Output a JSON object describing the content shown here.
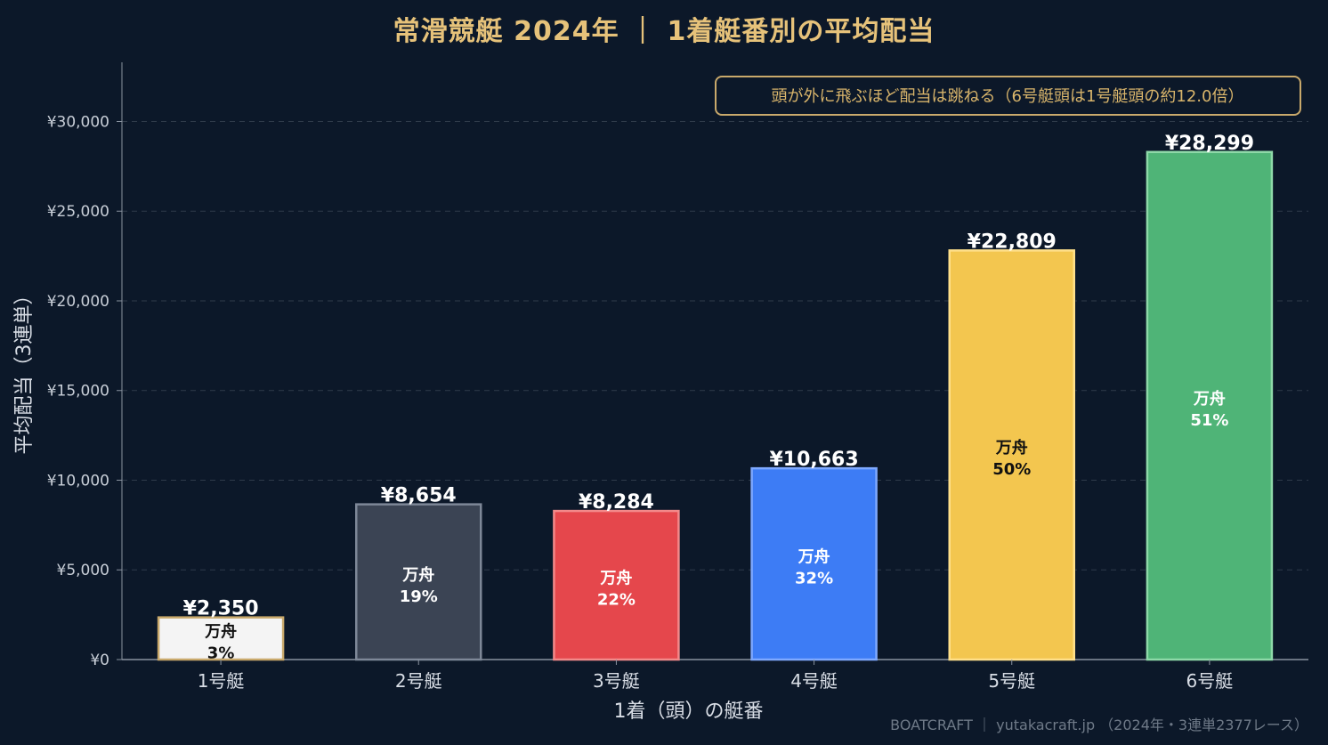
{
  "title": "常滑競艇 2024年 ｜ 1着艇番別の平均配当",
  "footer": "BOATCRAFT ｜ yutakacraft.jp （2024年・3連単2377レース）",
  "chart_data": {
    "type": "bar",
    "categories": [
      "1号艇",
      "2号艇",
      "3号艇",
      "4号艇",
      "5号艇",
      "6号艇"
    ],
    "values": [
      2350,
      8654,
      8284,
      10663,
      22809,
      28299
    ],
    "value_labels": [
      "¥2,350",
      "¥8,654",
      "¥8,284",
      "¥10,663",
      "¥22,809",
      "¥28,299"
    ],
    "inner_title": "万舟",
    "manshu_rates": [
      "3%",
      "19%",
      "22%",
      "32%",
      "50%",
      "51%"
    ],
    "bar_colors": [
      "#f4f4f4",
      "#3b4454",
      "#e5474c",
      "#3d7cf5",
      "#f3c64f",
      "#4fb477"
    ],
    "bar_borders": [
      "#c9a96b",
      "#7e8898",
      "#f28a8a",
      "#7fa9ff",
      "#ffe08a",
      "#8ed9a8"
    ],
    "inner_text_colors": [
      "#111111",
      "#ffffff",
      "#ffffff",
      "#ffffff",
      "#111111",
      "#ffffff"
    ],
    "ylim": [
      0,
      33300
    ],
    "yticks": [
      0,
      5000,
      10000,
      15000,
      20000,
      25000,
      30000
    ],
    "ytick_labels": [
      "¥0",
      "¥5,000",
      "¥10,000",
      "¥15,000",
      "¥20,000",
      "¥25,000",
      "¥30,000"
    ],
    "xlabel": "1着（頭）の艇番",
    "ylabel": "平均配当（3連単）",
    "annotation": "頭が外に飛ぶほど配当は跳ねる（6号艇頭は1号艇頭の約12.0倍）",
    "grid": true,
    "colors": {
      "background": "#0c1829",
      "title": "#e6c27a",
      "annotation_border": "#c9a96b",
      "grid": "#2f3b4a"
    }
  }
}
